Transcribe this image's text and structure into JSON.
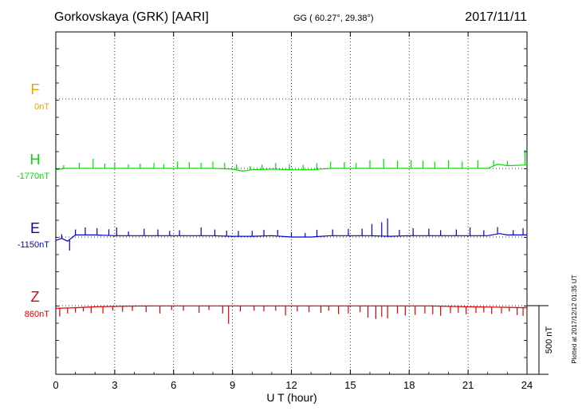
{
  "header": {
    "station": "Gorkovskaya (GRK)  [AARI]",
    "coords": "GG ( 60.27°,  29.38°)",
    "date": "2017/11/11"
  },
  "side_note": "Plotted at 2017/12/12 01:35 UT",
  "scale_label": "500 nT",
  "chart_data": {
    "type": "line",
    "xlabel": "U T (hour)",
    "xlim": [
      0,
      24
    ],
    "x_ticks": [
      0,
      3,
      6,
      9,
      12,
      15,
      18,
      21,
      24
    ],
    "x_tick_labels": [
      "0",
      "3",
      "6",
      "9",
      "12",
      "15",
      "18",
      "21",
      "24"
    ],
    "grid": true,
    "scale_bar_nT": 500,
    "series": [
      {
        "name": "F",
        "baseline_label": "0nT",
        "color": "#f0a000",
        "x": [],
        "values": []
      },
      {
        "name": "H",
        "baseline_label": "-1770nT",
        "color": "#00e000",
        "x": [
          0,
          0.5,
          1,
          2,
          3,
          4,
          5,
          6,
          7,
          8,
          9,
          9.5,
          10,
          11,
          12,
          13,
          14,
          15,
          16,
          17,
          18,
          19,
          20,
          21,
          22,
          22.5,
          23,
          24
        ],
        "values": [
          -10,
          0,
          0,
          0,
          0,
          0,
          0,
          0,
          0,
          0,
          -5,
          -20,
          -10,
          -5,
          -10,
          -10,
          0,
          0,
          0,
          0,
          0,
          0,
          0,
          0,
          0,
          30,
          20,
          25
        ],
        "spikes": [
          [
            0.4,
            25
          ],
          [
            1.2,
            40
          ],
          [
            1.9,
            70
          ],
          [
            2.5,
            35
          ],
          [
            3.0,
            45
          ],
          [
            3.7,
            30
          ],
          [
            4.3,
            35
          ],
          [
            5.0,
            40
          ],
          [
            5.5,
            30
          ],
          [
            6.2,
            50
          ],
          [
            6.8,
            45
          ],
          [
            7.4,
            40
          ],
          [
            8.0,
            50
          ],
          [
            8.6,
            45
          ],
          [
            9.2,
            40
          ],
          [
            9.9,
            30
          ],
          [
            10.5,
            35
          ],
          [
            11.2,
            45
          ],
          [
            11.9,
            40
          ],
          [
            12.6,
            35
          ],
          [
            13.3,
            45
          ],
          [
            14.0,
            50
          ],
          [
            14.7,
            45
          ],
          [
            15.3,
            40
          ],
          [
            16.0,
            60
          ],
          [
            16.7,
            70
          ],
          [
            17.4,
            55
          ],
          [
            18.1,
            60
          ],
          [
            18.7,
            55
          ],
          [
            19.3,
            50
          ],
          [
            20.0,
            60
          ],
          [
            20.7,
            50
          ],
          [
            21.5,
            60
          ],
          [
            22.3,
            40
          ],
          [
            23.0,
            35
          ],
          [
            23.9,
            110
          ]
        ]
      },
      {
        "name": "E",
        "baseline_label": "-1150nT",
        "color": "#0000d0",
        "x": [
          0,
          0.3,
          0.6,
          1,
          2,
          3,
          4,
          5,
          6,
          7,
          8,
          9,
          10,
          11,
          12,
          13,
          14,
          15,
          16,
          17,
          18,
          19,
          20,
          21,
          22,
          22.6,
          23,
          24
        ],
        "values": [
          -25,
          -10,
          -30,
          15,
          15,
          10,
          10,
          10,
          10,
          10,
          10,
          5,
          5,
          10,
          0,
          0,
          10,
          10,
          10,
          5,
          10,
          10,
          10,
          10,
          10,
          25,
          15,
          15
        ],
        "spikes": [
          [
            0.3,
            30
          ],
          [
            0.7,
            -80
          ],
          [
            1.0,
            40
          ],
          [
            1.5,
            55
          ],
          [
            2.1,
            50
          ],
          [
            2.7,
            45
          ],
          [
            3.1,
            60
          ],
          [
            3.7,
            30
          ],
          [
            4.5,
            50
          ],
          [
            5.2,
            45
          ],
          [
            5.8,
            35
          ],
          [
            6.3,
            40
          ],
          [
            7.4,
            60
          ],
          [
            8.1,
            45
          ],
          [
            8.7,
            40
          ],
          [
            9.3,
            40
          ],
          [
            10.0,
            40
          ],
          [
            10.6,
            45
          ],
          [
            11.3,
            45
          ],
          [
            12.0,
            35
          ],
          [
            12.7,
            30
          ],
          [
            13.3,
            50
          ],
          [
            14.1,
            45
          ],
          [
            14.9,
            50
          ],
          [
            15.6,
            50
          ],
          [
            16.1,
            85
          ],
          [
            16.6,
            100
          ],
          [
            16.9,
            130
          ],
          [
            17.5,
            45
          ],
          [
            18.2,
            55
          ],
          [
            19.0,
            50
          ],
          [
            19.6,
            40
          ],
          [
            20.4,
            45
          ],
          [
            21.1,
            60
          ],
          [
            21.8,
            40
          ],
          [
            22.5,
            50
          ],
          [
            23.3,
            35
          ],
          [
            23.8,
            50
          ]
        ]
      },
      {
        "name": "Z",
        "baseline_label": "860nT",
        "color": "#e00000",
        "x": [
          0,
          1,
          2,
          3,
          4,
          5,
          6,
          7,
          8,
          9,
          10,
          11,
          12,
          13,
          14,
          15,
          16,
          17,
          18,
          19,
          20,
          21,
          22,
          23,
          24
        ],
        "values": [
          -20,
          -15,
          -8,
          -5,
          -3,
          -2,
          -2,
          -2,
          -2,
          -2,
          -2,
          -2,
          -2,
          -2,
          -2,
          -2,
          -2,
          -2,
          -2,
          -2,
          -5,
          -8,
          -10,
          -12,
          -15
        ],
        "spikes": [
          [
            0.2,
            -60
          ],
          [
            0.6,
            -40
          ],
          [
            1.0,
            -35
          ],
          [
            1.4,
            -30
          ],
          [
            1.8,
            -45
          ],
          [
            2.4,
            -50
          ],
          [
            2.9,
            -30
          ],
          [
            3.4,
            -40
          ],
          [
            3.9,
            -35
          ],
          [
            4.6,
            -45
          ],
          [
            5.3,
            -55
          ],
          [
            5.9,
            -30
          ],
          [
            6.5,
            -35
          ],
          [
            7.3,
            -50
          ],
          [
            7.8,
            -30
          ],
          [
            8.5,
            -55
          ],
          [
            8.8,
            -130
          ],
          [
            9.4,
            -40
          ],
          [
            10.1,
            -35
          ],
          [
            10.6,
            -40
          ],
          [
            11.2,
            -35
          ],
          [
            11.7,
            -70
          ],
          [
            12.3,
            -40
          ],
          [
            12.9,
            -45
          ],
          [
            13.5,
            -50
          ],
          [
            13.9,
            -35
          ],
          [
            14.4,
            -60
          ],
          [
            14.9,
            -55
          ],
          [
            15.5,
            -45
          ],
          [
            15.9,
            -85
          ],
          [
            16.3,
            -95
          ],
          [
            16.6,
            -80
          ],
          [
            16.9,
            -90
          ],
          [
            17.4,
            -55
          ],
          [
            17.8,
            -70
          ],
          [
            18.3,
            -65
          ],
          [
            18.8,
            -55
          ],
          [
            19.2,
            -60
          ],
          [
            19.6,
            -70
          ],
          [
            20.1,
            -50
          ],
          [
            20.5,
            -45
          ],
          [
            20.9,
            -55
          ],
          [
            21.4,
            -45
          ],
          [
            21.8,
            -40
          ],
          [
            22.2,
            -50
          ],
          [
            22.7,
            -45
          ],
          [
            23.1,
            -30
          ],
          [
            23.5,
            -55
          ],
          [
            23.8,
            -60
          ]
        ]
      }
    ]
  }
}
